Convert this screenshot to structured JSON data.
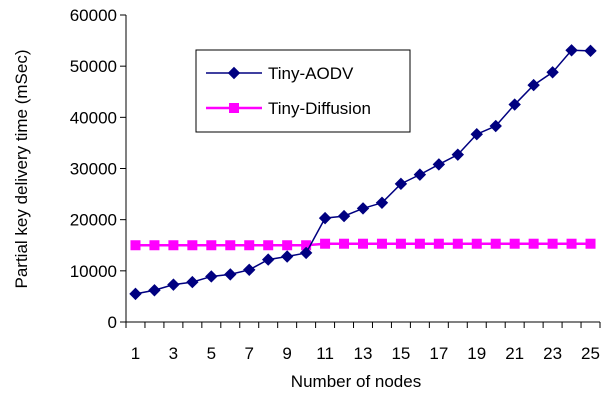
{
  "chart_data": {
    "type": "line",
    "title": "",
    "xlabel": "Number of nodes",
    "ylabel": "Partial key delivery time (mSec)",
    "x": [
      1,
      2,
      3,
      4,
      5,
      6,
      7,
      8,
      9,
      10,
      11,
      12,
      13,
      14,
      15,
      16,
      17,
      18,
      19,
      20,
      21,
      22,
      23,
      24,
      25
    ],
    "x_tick_labels": [
      "1",
      "3",
      "5",
      "7",
      "9",
      "11",
      "13",
      "15",
      "17",
      "19",
      "21",
      "23",
      "25"
    ],
    "ylim": [
      0,
      60000
    ],
    "y_ticks": [
      0,
      10000,
      20000,
      30000,
      40000,
      50000,
      60000
    ],
    "y_tick_labels": [
      "0",
      "10000",
      "20000",
      "30000",
      "40000",
      "50000",
      "60000"
    ],
    "grid": false,
    "legend_position": "top-left-inside",
    "series": [
      {
        "name": "Tiny-AODV",
        "color": "#000080",
        "marker": "diamond",
        "values": [
          5500,
          6200,
          7300,
          7800,
          8900,
          9300,
          10200,
          12200,
          12800,
          13500,
          20300,
          20700,
          22200,
          23300,
          27000,
          28800,
          30800,
          32700,
          36700,
          38300,
          42500,
          46300,
          48800,
          53100,
          53000
        ]
      },
      {
        "name": "Tiny-Diffusion",
        "color": "#FF00FF",
        "marker": "square",
        "values": [
          15000,
          15000,
          15000,
          15000,
          15000,
          15000,
          15000,
          15000,
          15000,
          15000,
          15300,
          15300,
          15300,
          15300,
          15300,
          15300,
          15300,
          15300,
          15300,
          15300,
          15300,
          15300,
          15300,
          15300,
          15300
        ]
      }
    ]
  }
}
